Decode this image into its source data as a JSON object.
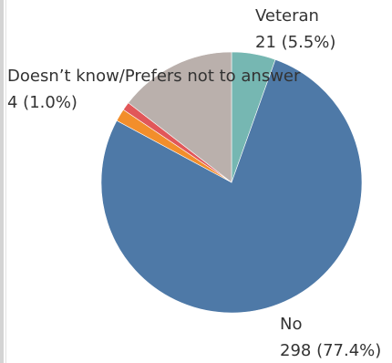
{
  "chart_data": {
    "type": "pie",
    "slices": [
      {
        "label": "Veteran",
        "count": 21,
        "percent": 5.5,
        "color": "#76b7b2"
      },
      {
        "label": "No",
        "count": 298,
        "percent": 77.4,
        "color": "#4e79a7"
      },
      {
        "label": "",
        "count": 6,
        "percent": 1.5,
        "color": "#f28e2b"
      },
      {
        "label": "Doesn’t know/Prefers not to answer",
        "count": 4,
        "percent": 1.0,
        "color": "#e15759"
      },
      {
        "label": "",
        "count": 56,
        "percent": 14.6,
        "color": "#bab0ac"
      }
    ],
    "start_angle_deg": 0,
    "direction": "clockwise"
  },
  "labels": {
    "veteran": {
      "name": "Veteran",
      "value": "21 (5.5%)"
    },
    "no": {
      "name": "No",
      "value": "298 (77.4%)"
    },
    "dont_know": {
      "name": "Doesn’t know/Prefers not to answer",
      "value": "4 (1.0%)"
    }
  }
}
